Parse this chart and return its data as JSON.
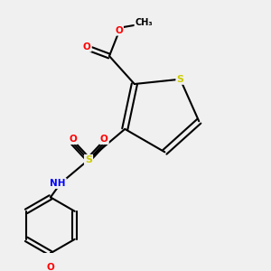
{
  "background_color": "#f0f0f0",
  "bond_color": "#000000",
  "atom_colors": {
    "S": "#cccc00",
    "O": "#ff0000",
    "N": "#0000ff",
    "C": "#000000",
    "H": "#000000"
  },
  "figsize": [
    3.0,
    3.0
  ],
  "dpi": 100
}
